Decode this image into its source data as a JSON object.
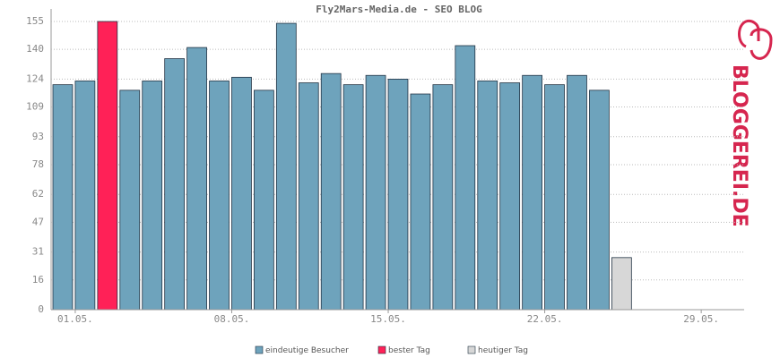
{
  "chart_data": {
    "type": "bar",
    "title": "Fly2Mars-Media.de - SEO BLOG",
    "watermark": "BLOGGEREI.DE",
    "categories": [
      null,
      "01.05.",
      null,
      null,
      null,
      null,
      null,
      null,
      "08.05.",
      null,
      null,
      null,
      null,
      null,
      null,
      "15.05.",
      null,
      null,
      null,
      null,
      null,
      null,
      "22.05.",
      null,
      null,
      null,
      null,
      null,
      null,
      "29.05.",
      null
    ],
    "series": [
      {
        "name": "eindeutige Besucher",
        "color": "#6ea3bc",
        "values": [
          121,
          123,
          null,
          118,
          123,
          135,
          141,
          123,
          125,
          118,
          154,
          122,
          127,
          121,
          126,
          124,
          116,
          121,
          142,
          123,
          122,
          126,
          121,
          126,
          118,
          null,
          null,
          null,
          null,
          null,
          null
        ]
      },
      {
        "name": "bester Tag",
        "color": "#ff2157",
        "values": [
          null,
          null,
          155,
          null,
          null,
          null,
          null,
          null,
          null,
          null,
          null,
          null,
          null,
          null,
          null,
          null,
          null,
          null,
          null,
          null,
          null,
          null,
          null,
          null,
          null,
          null,
          null,
          null,
          null,
          null,
          null
        ]
      },
      {
        "name": "heutiger Tag",
        "color": "#d7d7d7",
        "values": [
          null,
          null,
          null,
          null,
          null,
          null,
          null,
          null,
          null,
          null,
          null,
          null,
          null,
          null,
          null,
          null,
          null,
          null,
          null,
          null,
          null,
          null,
          null,
          null,
          null,
          28,
          null,
          null,
          null,
          null,
          null
        ]
      }
    ],
    "ylim": [
      0,
      155
    ],
    "yticks": [
      0,
      16,
      31,
      47,
      62,
      78,
      93,
      109,
      124,
      140,
      155
    ],
    "grid": true
  }
}
